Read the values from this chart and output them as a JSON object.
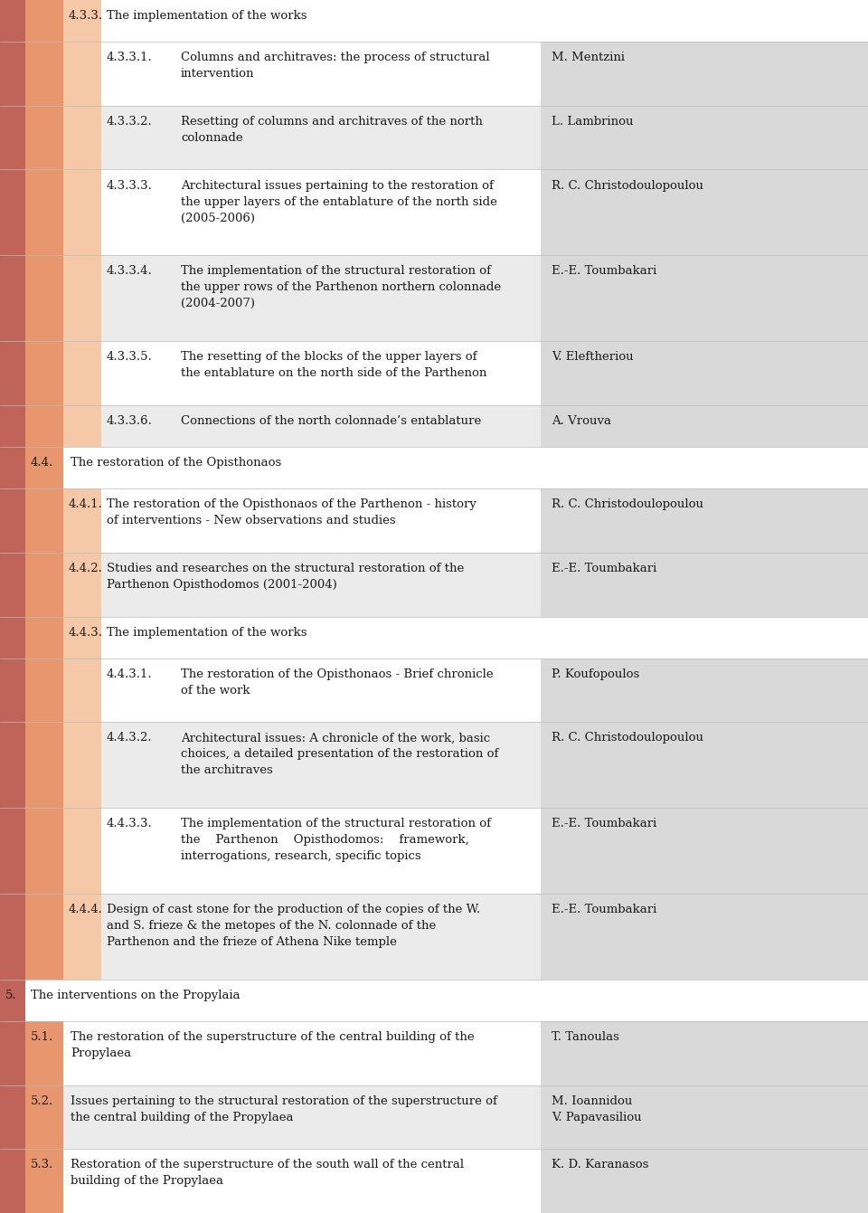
{
  "bg_color": "#ffffff",
  "col1_color": "#c0645a",
  "col2_color": "#e8966e",
  "col3_color": "#f5c9a8",
  "author_bg": "#d9d9d9",
  "light_gray": "#ebebeb",
  "rows": [
    {
      "level": 2,
      "num": "4.3.3.",
      "text": "The implementation of the works",
      "author": "",
      "has_author_bg": false,
      "row_bg": "#ffffff",
      "nlines": 1
    },
    {
      "level": 3,
      "num": "4.3.3.1.",
      "text": "Columns and architraves: the process of structural\nintervention",
      "author": "M. Mentzini",
      "has_author_bg": true,
      "row_bg": "#ffffff",
      "nlines": 2
    },
    {
      "level": 3,
      "num": "4.3.3.2.",
      "text": "Resetting of columns and architraves of the north\ncolonnade",
      "author": "L. Lambrinou",
      "has_author_bg": true,
      "row_bg": "#ebebeb",
      "nlines": 2
    },
    {
      "level": 3,
      "num": "4.3.3.3.",
      "text": "Architectural issues pertaining to the restoration of\nthe upper layers of the entablature of the north side\n(2005-2006)",
      "author": "R. C. Christodoulopoulou",
      "has_author_bg": true,
      "row_bg": "#ffffff",
      "nlines": 3
    },
    {
      "level": 3,
      "num": "4.3.3.4.",
      "text": "The implementation of the structural restoration of\nthe upper rows of the Parthenon northern colonnade\n(2004-2007)",
      "author": "E.-E. Toumbakari",
      "has_author_bg": true,
      "row_bg": "#ebebeb",
      "nlines": 3
    },
    {
      "level": 3,
      "num": "4.3.3.5.",
      "text": "The resetting of the blocks of the upper layers of\nthe entablature on the north side of the Parthenon",
      "author": "V. Eleftheriou",
      "has_author_bg": true,
      "row_bg": "#ffffff",
      "nlines": 2
    },
    {
      "level": 3,
      "num": "4.3.3.6.",
      "text": "Connections of the north colonnade’s entablature",
      "author": "A. Vrouva",
      "has_author_bg": true,
      "row_bg": "#ebebeb",
      "nlines": 1
    },
    {
      "level": 1,
      "num": "4.4.",
      "text": "The restoration of the Opisthonaos",
      "author": "",
      "has_author_bg": false,
      "row_bg": "#ffffff",
      "nlines": 1
    },
    {
      "level": 2,
      "num": "4.4.1.",
      "text": "The restoration of the Opisthonaos of the Parthenon - history\nof interventions - New observations and studies",
      "author": "R. C. Christodoulopoulou",
      "has_author_bg": true,
      "row_bg": "#ffffff",
      "nlines": 2
    },
    {
      "level": 2,
      "num": "4.4.2.",
      "text": "Studies and researches on the structural restoration of the\nParthenon Opisthodomos (2001-2004)",
      "author": "E.-E. Toumbakari",
      "has_author_bg": true,
      "row_bg": "#ebebeb",
      "nlines": 2
    },
    {
      "level": 2,
      "num": "4.4.3.",
      "text": "The implementation of the works",
      "author": "",
      "has_author_bg": false,
      "row_bg": "#ffffff",
      "nlines": 1
    },
    {
      "level": 3,
      "num": "4.4.3.1.",
      "text": "The restoration of the Opisthonaos - Brief chronicle\nof the work",
      "author": "P. Koufopoulos",
      "has_author_bg": true,
      "row_bg": "#ffffff",
      "nlines": 2
    },
    {
      "level": 3,
      "num": "4.4.3.2.",
      "text": "Architectural issues: A chronicle of the work, basic\nchoices, a detailed presentation of the restoration of\nthe architraves",
      "author": "R. C. Christodoulopoulou",
      "has_author_bg": true,
      "row_bg": "#ebebeb",
      "nlines": 3
    },
    {
      "level": 3,
      "num": "4.4.3.3.",
      "text": "The implementation of the structural restoration of\nthe    Parthenon    Opisthodomos:    framework,\ninterrogations, research, specific topics",
      "author": "E.-E. Toumbakari",
      "has_author_bg": true,
      "row_bg": "#ffffff",
      "nlines": 3
    },
    {
      "level": 2,
      "num": "4.4.4.",
      "text": "Design of cast stone for the production of the copies of the W.\nand S. frieze & the metopes of the N. colonnade of the\nParthenon and the frieze of Athena Nike temple",
      "author": "E.-E. Toumbakari",
      "has_author_bg": true,
      "row_bg": "#ebebeb",
      "nlines": 3
    },
    {
      "level": 0,
      "num": "5.",
      "text": "The interventions on the Propylaia",
      "author": "",
      "has_author_bg": false,
      "row_bg": "#ffffff",
      "nlines": 1
    },
    {
      "level": 1,
      "num": "5.1.",
      "text": "The restoration of the superstructure of the central building of the\nPropylaea",
      "author": "T. Tanoulas",
      "has_author_bg": true,
      "row_bg": "#ffffff",
      "nlines": 2
    },
    {
      "level": 1,
      "num": "5.2.",
      "text": "Issues pertaining to the structural restoration of the superstructure of\nthe central building of the Propylaea",
      "author": "M. Ioannidou\nV. Papavasiliou",
      "has_author_bg": true,
      "row_bg": "#ebebeb",
      "nlines": 2
    },
    {
      "level": 1,
      "num": "5.3.",
      "text": "Restoration of the superstructure of the south wall of the central\nbuilding of the Propylaea",
      "author": "K. D. Karanasos",
      "has_author_bg": true,
      "row_bg": "#ffffff",
      "nlines": 2
    }
  ]
}
